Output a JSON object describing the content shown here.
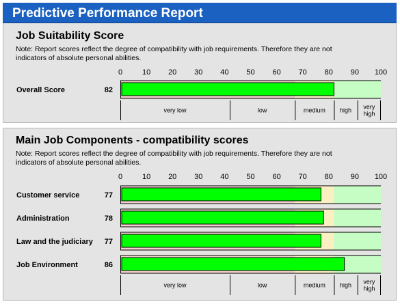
{
  "header": {
    "title": "Predictive Performance Report"
  },
  "colors": {
    "header_bg": "#1b61c1",
    "panel_bg": "#e4e4e4",
    "zone_low": "#f6d0d0",
    "zone_medium": "#fbf0c2",
    "zone_high": "#c6fdc4",
    "bar_fill": "#00ff00"
  },
  "suitability": {
    "title": "Job Suitability Score",
    "note": "Note: Report scores reflect the degree of compatibility with job requirements. Therefore they are not indicators of absolute personal abilities."
  },
  "components": {
    "title": "Main Job Components - compatibility scores",
    "note": "Note: Report scores reflect the degree of compatibility with job requirements. Therefore they are not indicators of absolute personal abilities."
  },
  "chart_data": [
    {
      "type": "bar",
      "orientation": "horizontal",
      "title": "Job Suitability Score",
      "xlim": [
        0,
        100
      ],
      "xticks": [
        0,
        10,
        20,
        30,
        40,
        50,
        60,
        70,
        80,
        90,
        100
      ],
      "categories": [
        "Overall Score"
      ],
      "values": [
        82
      ],
      "bands": [
        {
          "label": "very low",
          "from": 0,
          "to": 42
        },
        {
          "label": "low",
          "from": 42,
          "to": 67
        },
        {
          "label": "medium",
          "from": 67,
          "to": 82
        },
        {
          "label": "high",
          "from": 82,
          "to": 91
        },
        {
          "label": "very high",
          "from": 91,
          "to": 100
        }
      ],
      "grid": false
    },
    {
      "type": "bar",
      "orientation": "horizontal",
      "title": "Main Job Components - compatibility scores",
      "xlim": [
        0,
        100
      ],
      "xticks": [
        0,
        10,
        20,
        30,
        40,
        50,
        60,
        70,
        80,
        90,
        100
      ],
      "categories": [
        "Customer service",
        "Administration",
        "Law and the judiciary",
        "Job Environment"
      ],
      "values": [
        77,
        78,
        77,
        86
      ],
      "bands": [
        {
          "label": "very low",
          "from": 0,
          "to": 42
        },
        {
          "label": "low",
          "from": 42,
          "to": 67
        },
        {
          "label": "medium",
          "from": 67,
          "to": 82
        },
        {
          "label": "high",
          "from": 82,
          "to": 91
        },
        {
          "label": "very high",
          "from": 91,
          "to": 100
        }
      ],
      "grid": false
    }
  ]
}
